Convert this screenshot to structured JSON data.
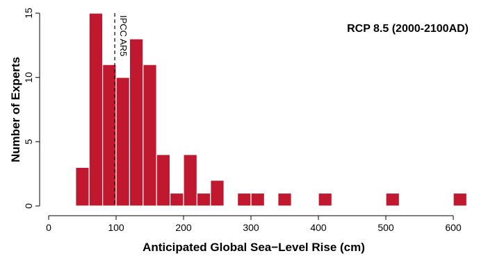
{
  "chart_data": {
    "type": "bar",
    "subtype": "histogram",
    "title": "RCP 8.5 (2000-2100AD)",
    "xlabel": "Anticipated Global Sea−Level Rise (cm)",
    "ylabel": "Number of Experts",
    "xlim": [
      0,
      620
    ],
    "ylim": [
      0,
      15
    ],
    "xticks": [
      0,
      100,
      200,
      300,
      400,
      500,
      600
    ],
    "yticks": [
      0,
      5,
      10,
      15
    ],
    "bin_width": 20,
    "bins": [
      {
        "start": 40,
        "end": 60,
        "count": 3
      },
      {
        "start": 60,
        "end": 80,
        "count": 15
      },
      {
        "start": 80,
        "end": 100,
        "count": 11
      },
      {
        "start": 100,
        "end": 120,
        "count": 10
      },
      {
        "start": 120,
        "end": 140,
        "count": 13
      },
      {
        "start": 140,
        "end": 160,
        "count": 11
      },
      {
        "start": 160,
        "end": 180,
        "count": 4
      },
      {
        "start": 180,
        "end": 200,
        "count": 1
      },
      {
        "start": 200,
        "end": 220,
        "count": 4
      },
      {
        "start": 220,
        "end": 240,
        "count": 1
      },
      {
        "start": 240,
        "end": 260,
        "count": 2
      },
      {
        "start": 280,
        "end": 300,
        "count": 1
      },
      {
        "start": 300,
        "end": 320,
        "count": 1
      },
      {
        "start": 340,
        "end": 360,
        "count": 1
      },
      {
        "start": 400,
        "end": 420,
        "count": 1
      },
      {
        "start": 500,
        "end": 520,
        "count": 1
      },
      {
        "start": 600,
        "end": 620,
        "count": 1
      }
    ],
    "reference_line": {
      "x": 98,
      "label": "IPCC AR5",
      "style": "dashed"
    },
    "bar_color": "#c0192f",
    "grid": false
  }
}
